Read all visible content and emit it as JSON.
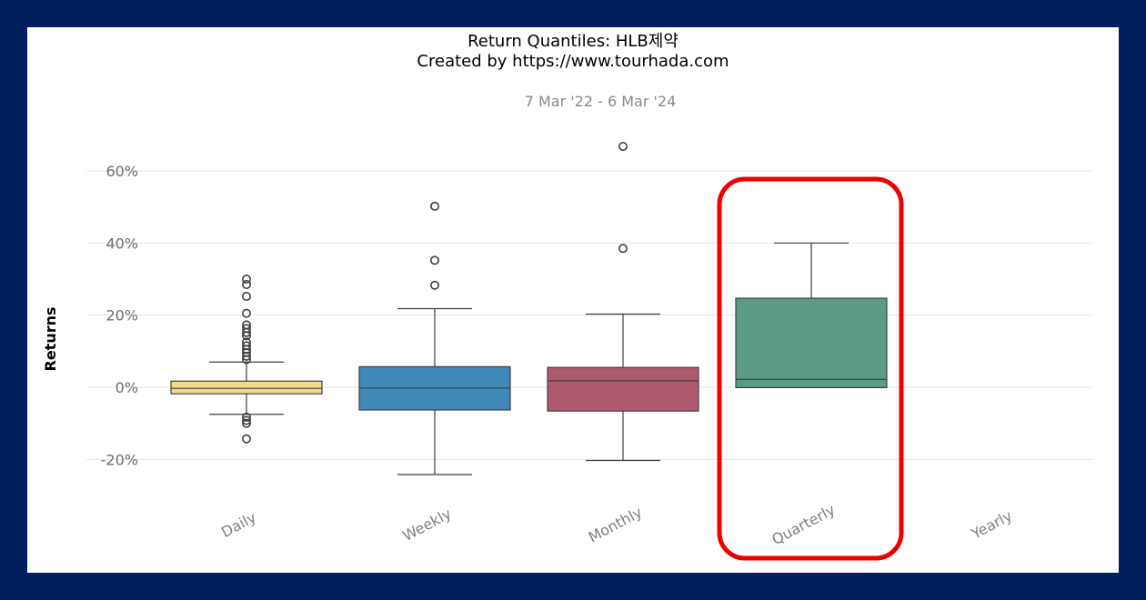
{
  "chart_data": {
    "type": "box",
    "title_line1": "Return Quantiles: HLB제약",
    "title_line2": "Created by https://www.tourhada.com",
    "date_range": "7 Mar '22 -  6 Mar '24",
    "ylabel": "Returns",
    "xlabel": "",
    "ylim": [
      -27,
      72
    ],
    "yticks": [
      -20,
      0,
      20,
      40,
      60
    ],
    "ytick_labels": [
      "-20%",
      "0%",
      "20%",
      "40%",
      "60%"
    ],
    "grid": true,
    "categories": [
      "Daily",
      "Weekly",
      "Monthly",
      "Quarterly",
      "Yearly"
    ],
    "boxes": [
      {
        "category": "Daily",
        "color": "#f3d98a",
        "whisker_low": -7.5,
        "q1": -1.8,
        "median": -0.3,
        "q3": 1.7,
        "whisker_high": 7.0,
        "outliers": [
          30.0,
          28.5,
          25.2,
          20.5,
          17.3,
          16.3,
          15.2,
          14.3,
          12.5,
          11.5,
          10.5,
          9.6,
          8.6,
          7.7,
          -8.3,
          -9.2,
          -10.0,
          -14.3
        ]
      },
      {
        "category": "Weekly",
        "color": "#3f88b8",
        "whisker_low": -24.2,
        "q1": -6.3,
        "median": -0.2,
        "q3": 5.7,
        "whisker_high": 21.8,
        "outliers": [
          50.2,
          35.2,
          28.3
        ]
      },
      {
        "category": "Monthly",
        "color": "#b05a6f",
        "whisker_low": -20.3,
        "q1": -6.6,
        "median": 1.8,
        "q3": 5.5,
        "whisker_high": 20.3,
        "outliers": [
          66.8,
          38.5
        ]
      },
      {
        "category": "Quarterly",
        "color": "#5b9b86",
        "whisker_low": -0.1,
        "q1": -0.1,
        "median": 2.2,
        "q3": 24.7,
        "whisker_high": 40.0,
        "outliers": []
      }
    ],
    "highlight": {
      "category": "Quarterly",
      "color": "#ee0000"
    }
  }
}
